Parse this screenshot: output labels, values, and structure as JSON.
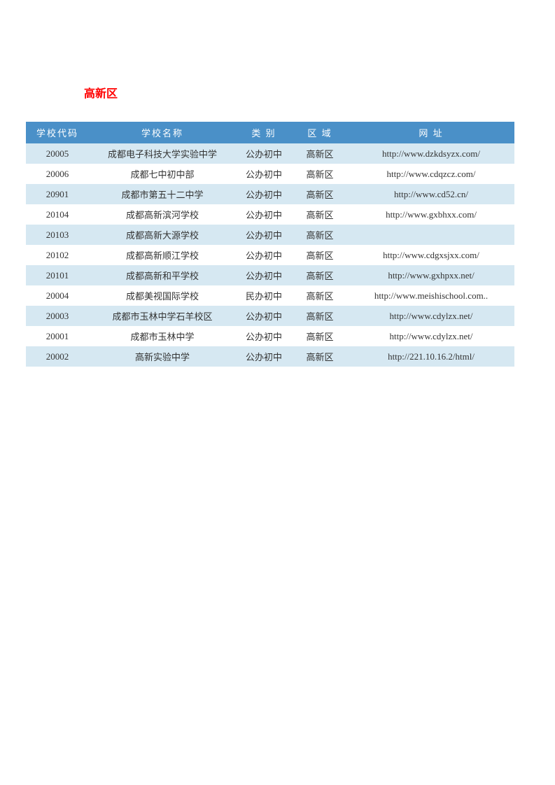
{
  "title": "高新区",
  "table": {
    "headers": {
      "code": "学校代码",
      "name": "学校名称",
      "type": "类 别",
      "region": "区 域",
      "url": "网 址"
    },
    "rows": [
      {
        "code": "20005",
        "name": "成都电子科技大学实验中学",
        "type": "公办初中",
        "region": "高新区",
        "url": "http://www.dzkdsyzx.com/"
      },
      {
        "code": "20006",
        "name": "成都七中初中部",
        "type": "公办初中",
        "region": "高新区",
        "url": "http://www.cdqzcz.com/"
      },
      {
        "code": "20901",
        "name": "成都市第五十二中学",
        "type": "公办初中",
        "region": "高新区",
        "url": "http://www.cd52.cn/"
      },
      {
        "code": "20104",
        "name": "成都高新滨河学校",
        "type": "公办初中",
        "region": "高新区",
        "url": "http://www.gxbhxx.com/"
      },
      {
        "code": "20103",
        "name": "成都高新大源学校",
        "type": "公办初中",
        "region": "高新区",
        "url": ""
      },
      {
        "code": "20102",
        "name": "成都高新顺江学校",
        "type": "公办初中",
        "region": "高新区",
        "url": "http://www.cdgxsjxx.com/"
      },
      {
        "code": "20101",
        "name": "成都高新和平学校",
        "type": "公办初中",
        "region": "高新区",
        "url": "http://www.gxhpxx.net/"
      },
      {
        "code": "20004",
        "name": "成都美视国际学校",
        "type": "民办初中",
        "region": "高新区",
        "url": "http://www.meishischool.com.."
      },
      {
        "code": "20003",
        "name": "成都市玉林中学石羊校区",
        "type": "公办初中",
        "region": "高新区",
        "url": "http://www.cdylzx.net/"
      },
      {
        "code": "20001",
        "name": "成都市玉林中学",
        "type": "公办初中",
        "region": "高新区",
        "url": "http://www.cdylzx.net/"
      },
      {
        "code": "20002",
        "name": "高新实验中学",
        "type": "公办初中",
        "region": "高新区",
        "url": "http://221.10.16.2/html/"
      }
    ],
    "styling": {
      "header_background": "#4a90c8",
      "header_text_color": "#ffffff",
      "row_even_background": "#d6e8f2",
      "row_odd_background": "#ffffff",
      "title_color": "#ff0000",
      "cell_text_color": "#333333",
      "font_size_title": 16,
      "font_size_cells": 13
    }
  }
}
